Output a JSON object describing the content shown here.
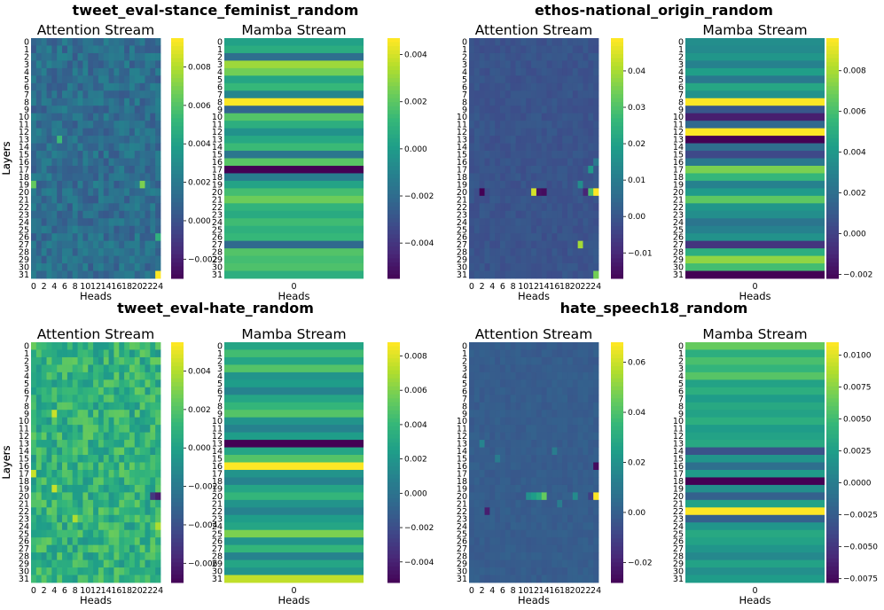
{
  "chart_data": [
    {
      "type": "heatmap",
      "title": "tweet_eval-stance_feminist_random",
      "layers": [
        "0",
        "1",
        "2",
        "3",
        "4",
        "5",
        "6",
        "7",
        "8",
        "9",
        "10",
        "11",
        "12",
        "13",
        "14",
        "15",
        "16",
        "17",
        "18",
        "19",
        "20",
        "21",
        "22",
        "23",
        "24",
        "25",
        "26",
        "27",
        "28",
        "29",
        "30",
        "31"
      ],
      "attention": {
        "title": "Attention Stream",
        "xlabel": "Heads",
        "ylabel": "Layers",
        "xticks": [
          "0",
          "2",
          "4",
          "6",
          "8",
          "10",
          "12",
          "14",
          "16",
          "18",
          "20",
          "22",
          "24"
        ],
        "colorbar_ticks": [
          "0.008",
          "0.006",
          "0.004",
          "0.002",
          "0.000",
          "-0.002"
        ],
        "vmin": -0.003,
        "vmax": 0.0095,
        "base": 0.0015,
        "noise": 0.0011,
        "hotspots": [
          [
            19,
            0,
            0.0065
          ],
          [
            31,
            24,
            0.0095
          ],
          [
            19,
            21,
            0.007
          ],
          [
            26,
            24,
            0.005
          ],
          [
            13,
            5,
            0.0055
          ]
        ]
      },
      "mamba": {
        "title": "Mamba Stream",
        "xlabel": "Heads",
        "xticks": [
          "0"
        ],
        "colorbar_ticks": [
          "0.004",
          "0.002",
          "0.000",
          "-0.002",
          "-0.004"
        ],
        "vmin": -0.0055,
        "vmax": 0.0047,
        "values": [
          0.0003,
          0.0008,
          -0.0018,
          0.0032,
          0.0025,
          0.0005,
          0.0013,
          -0.0008,
          0.0047,
          -0.0022,
          0.0019,
          0.0009,
          -0.0003,
          0.0006,
          0.0014,
          -0.0015,
          0.002,
          -0.0055,
          -0.0012,
          0.0004,
          0.0016,
          0.0024,
          0.0011,
          0.0007,
          0.0015,
          0.001,
          0.0013,
          -0.002,
          0.0019,
          0.0016,
          0.0018,
          0.0009
        ]
      }
    },
    {
      "type": "heatmap",
      "title": "ethos-national_origin_random",
      "layers": [
        "0",
        "1",
        "2",
        "3",
        "4",
        "5",
        "6",
        "7",
        "8",
        "9",
        "10",
        "11",
        "12",
        "13",
        "14",
        "15",
        "16",
        "17",
        "18",
        "19",
        "20",
        "21",
        "22",
        "23",
        "24",
        "25",
        "26",
        "27",
        "28",
        "29",
        "30",
        "31"
      ],
      "attention": {
        "title": "Attention Stream",
        "xlabel": "Heads",
        "ylabel": "Layers",
        "xticks": [
          "0",
          "2",
          "4",
          "6",
          "8",
          "10",
          "12",
          "14",
          "16",
          "18",
          "20",
          "22",
          "24"
        ],
        "colorbar_ticks": [
          "0.04",
          "0.03",
          "0.02",
          "0.01",
          "0.00",
          "-0.01"
        ],
        "vmin": -0.017,
        "vmax": 0.049,
        "base": 0.0,
        "noise": 0.0018,
        "hotspots": [
          [
            20,
            2,
            -0.017
          ],
          [
            20,
            12,
            0.045
          ],
          [
            20,
            13,
            -0.014
          ],
          [
            20,
            14,
            -0.015
          ],
          [
            20,
            24,
            0.049
          ],
          [
            20,
            22,
            -0.01
          ],
          [
            20,
            23,
            0.03
          ],
          [
            27,
            21,
            0.04
          ],
          [
            31,
            24,
            0.035
          ],
          [
            19,
            21,
            0.015
          ],
          [
            17,
            23,
            0.018
          ],
          [
            16,
            24,
            0.01
          ]
        ]
      },
      "mamba": {
        "title": "Mamba Stream",
        "xlabel": "Heads",
        "xticks": [
          "0"
        ],
        "colorbar_ticks": [
          "0.008",
          "0.006",
          "0.004",
          "0.002",
          "0.000",
          "-0.002"
        ],
        "vmin": -0.0022,
        "vmax": 0.0096,
        "values": [
          0.0036,
          0.0034,
          0.004,
          0.003,
          0.0044,
          0.0026,
          0.0048,
          0.0038,
          0.0096,
          0.001,
          -0.0012,
          0.0018,
          0.0096,
          -0.0022,
          0.002,
          0.0004,
          0.0026,
          0.0072,
          0.0056,
          0.003,
          0.0042,
          0.0066,
          0.004,
          0.0036,
          0.0024,
          0.003,
          0.0038,
          -0.0004,
          0.0052,
          0.0076,
          0.006,
          -0.0022
        ]
      }
    },
    {
      "type": "heatmap",
      "title": "tweet_eval-hate_random",
      "layers": [
        "0",
        "1",
        "2",
        "3",
        "4",
        "5",
        "6",
        "7",
        "8",
        "9",
        "10",
        "11",
        "12",
        "13",
        "14",
        "15",
        "16",
        "17",
        "18",
        "19",
        "20",
        "21",
        "22",
        "23",
        "24",
        "25",
        "26",
        "27",
        "28",
        "29",
        "30",
        "31"
      ],
      "attention": {
        "title": "Attention Stream",
        "xlabel": "Heads",
        "ylabel": "Layers",
        "xticks": [
          "0",
          "2",
          "4",
          "6",
          "8",
          "10",
          "12",
          "14",
          "16",
          "18",
          "20",
          "22",
          "24"
        ],
        "colorbar_ticks": [
          "0.004",
          "0.002",
          "0.000",
          "-0.002",
          "-0.004",
          "-0.006"
        ],
        "vmin": -0.007,
        "vmax": 0.0055,
        "base": 0.001,
        "noise": 0.0016,
        "hotspots": [
          [
            20,
            24,
            -0.006
          ],
          [
            20,
            23,
            -0.005
          ],
          [
            9,
            4,
            0.0045
          ],
          [
            17,
            0,
            0.0045
          ],
          [
            24,
            24,
            0.004
          ],
          [
            19,
            4,
            0.0045
          ],
          [
            23,
            8,
            0.004
          ]
        ]
      },
      "mamba": {
        "title": "Mamba Stream",
        "xlabel": "Heads",
        "xticks": [
          "0"
        ],
        "colorbar_ticks": [
          "0.008",
          "0.006",
          "0.004",
          "0.002",
          "0.000",
          "-0.002",
          "-0.004"
        ],
        "vmin": -0.0052,
        "vmax": 0.0088,
        "values": [
          0.003,
          0.0045,
          0.003,
          0.005,
          0.002,
          0.0025,
          0.001,
          0.003,
          0.004,
          0.005,
          0.002,
          0.001,
          0.0025,
          -0.0052,
          0.003,
          0.005,
          0.0088,
          0.002,
          0.001,
          0.003,
          0.004,
          0.002,
          0.001,
          0.0025,
          0.003,
          0.006,
          0.002,
          0.004,
          0.001,
          0.003,
          0.002,
          0.0075
        ]
      }
    },
    {
      "type": "heatmap",
      "title": "hate_speech18_random",
      "layers": [
        "0",
        "1",
        "2",
        "3",
        "4",
        "5",
        "6",
        "7",
        "8",
        "9",
        "10",
        "11",
        "12",
        "13",
        "14",
        "15",
        "16",
        "17",
        "18",
        "19",
        "20",
        "21",
        "22",
        "23",
        "24",
        "25",
        "26",
        "27",
        "28",
        "29",
        "30",
        "31"
      ],
      "attention": {
        "title": "Attention Stream",
        "xlabel": "Heads",
        "ylabel": "Layers",
        "xticks": [
          "0",
          "2",
          "4",
          "6",
          "8",
          "10",
          "12",
          "14",
          "16",
          "18",
          "20",
          "22",
          "24"
        ],
        "colorbar_ticks": [
          "0.06",
          "0.04",
          "0.02",
          "0.00",
          "-0.02"
        ],
        "vmin": -0.028,
        "vmax": 0.068,
        "base": 0.0,
        "noise": 0.002,
        "hotspots": [
          [
            16,
            24,
            -0.025
          ],
          [
            20,
            24,
            0.068
          ],
          [
            20,
            23,
            -0.01
          ],
          [
            20,
            14,
            0.045
          ],
          [
            20,
            13,
            0.03
          ],
          [
            20,
            12,
            0.025
          ],
          [
            20,
            11,
            0.02
          ],
          [
            22,
            3,
            -0.02
          ],
          [
            13,
            2,
            0.015
          ],
          [
            15,
            5,
            0.012
          ],
          [
            14,
            16,
            0.012
          ],
          [
            20,
            20,
            0.018
          ],
          [
            21,
            17,
            0.012
          ]
        ]
      },
      "mamba": {
        "title": "Mamba Stream",
        "xlabel": "Heads",
        "xticks": [
          "0"
        ],
        "colorbar_ticks": [
          "0.0100",
          "0.0075",
          "0.0050",
          "0.0025",
          "0.0000",
          "-0.0025",
          "-0.0050",
          "-0.0075"
        ],
        "vmin": -0.0078,
        "vmax": 0.011,
        "values": [
          0.0065,
          0.004,
          0.0055,
          0.0045,
          0.006,
          0.003,
          0.004,
          0.0025,
          0.0035,
          0.003,
          0.004,
          0.0025,
          0.003,
          0.0035,
          -0.003,
          0.002,
          -0.001,
          0.0025,
          -0.0078,
          0.0015,
          -0.002,
          0.003,
          0.011,
          -0.002,
          0.002,
          0.0035,
          0.003,
          0.002,
          0.001,
          0.003,
          0.0015,
          0.0025
        ]
      }
    }
  ]
}
